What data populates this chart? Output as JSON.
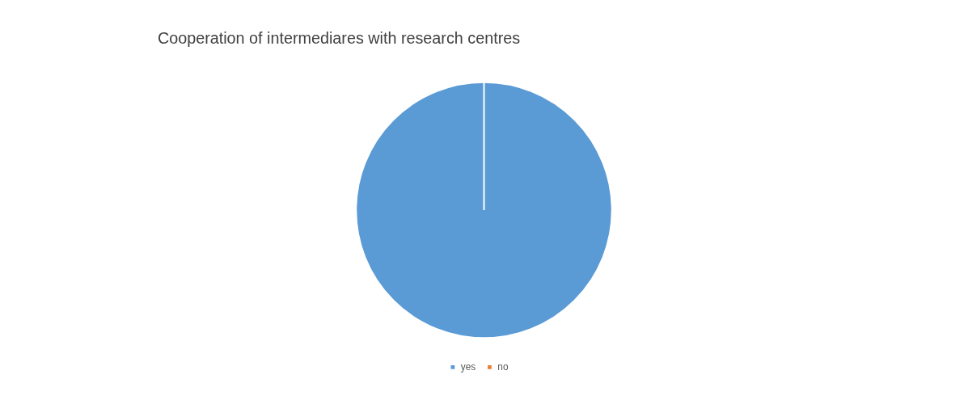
{
  "chart_data": {
    "type": "pie",
    "title": "Cooperation of intermediares with research centres",
    "categories": [
      "yes",
      "no"
    ],
    "values": [
      100,
      0
    ],
    "colors": [
      "#5b9bd5",
      "#ed7d31"
    ],
    "legend": "bottom"
  }
}
